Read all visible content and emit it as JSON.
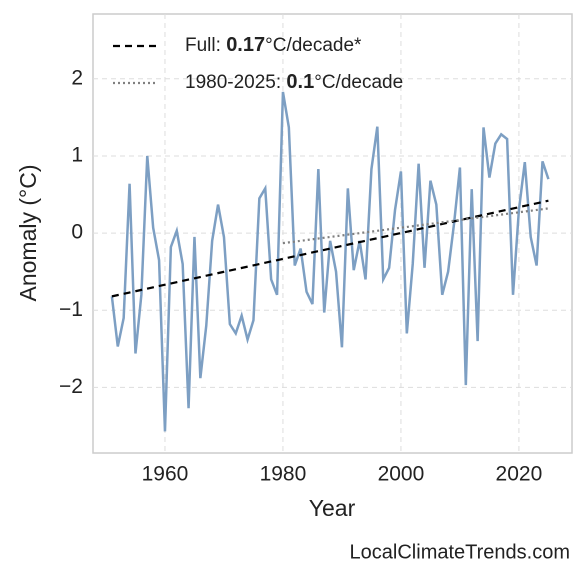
{
  "chart_data": {
    "type": "line",
    "xlabel": "Year",
    "ylabel": "Anomaly (°C)",
    "xlim": [
      1947.8,
      2029.0
    ],
    "ylim": [
      -2.85,
      2.84
    ],
    "xticks": [
      1960,
      1980,
      2000,
      2020
    ],
    "yticks": [
      {
        "value": -2,
        "label": "−2"
      },
      {
        "value": -1,
        "label": "−1"
      },
      0,
      1,
      2
    ],
    "grid": true,
    "legend": "upper left",
    "x": [
      1951,
      1952,
      1953,
      1954,
      1955,
      1956,
      1957,
      1958,
      1959,
      1960,
      1961,
      1962,
      1963,
      1964,
      1965,
      1966,
      1967,
      1968,
      1969,
      1970,
      1971,
      1972,
      1973,
      1974,
      1975,
      1976,
      1977,
      1978,
      1979,
      1980,
      1981,
      1982,
      1983,
      1984,
      1985,
      1986,
      1987,
      1988,
      1989,
      1990,
      1991,
      1992,
      1993,
      1994,
      1995,
      1996,
      1997,
      1998,
      1999,
      2000,
      2001,
      2002,
      2003,
      2004,
      2005,
      2006,
      2007,
      2008,
      2009,
      2010,
      2011,
      2012,
      2013,
      2014,
      2015,
      2016,
      2017,
      2018,
      2019,
      2020,
      2021,
      2022,
      2023,
      2024,
      2025
    ],
    "series": [
      {
        "color": "#7d9fc3",
        "values": [
          -0.82,
          -1.47,
          -1.1,
          0.64,
          -1.56,
          -0.8,
          1.0,
          0.07,
          -0.35,
          -2.57,
          -0.18,
          0.03,
          -0.4,
          -2.27,
          -0.05,
          -1.88,
          -1.2,
          -0.1,
          0.37,
          -0.05,
          -1.18,
          -1.3,
          -1.07,
          -1.38,
          -1.13,
          0.45,
          0.58,
          -0.6,
          -0.8,
          1.83,
          1.37,
          -0.42,
          -0.2,
          -0.76,
          -0.92,
          0.83,
          -1.03,
          -0.1,
          -0.5,
          -1.48,
          0.58,
          -0.48,
          -0.1,
          -0.6,
          0.83,
          1.38,
          -0.6,
          -0.45,
          0.3,
          0.8,
          -1.3,
          -0.4,
          0.9,
          -0.45,
          0.68,
          0.37,
          -0.8,
          -0.5,
          0.12,
          0.85,
          -1.97,
          0.57,
          -1.4,
          1.37,
          0.72,
          1.16,
          1.28,
          1.22,
          -0.8,
          0.3,
          0.92,
          -0.05,
          -0.42,
          0.93,
          0.7
        ]
      },
      {
        "name_prefix": "Full: ",
        "slope": 0.17,
        "name_suffix": "°C/decade*",
        "color": "#000000",
        "style": "dashed",
        "x": [
          1951,
          2025
        ],
        "values": [
          -0.82,
          0.42
        ]
      },
      {
        "name_prefix": "1980-2025: ",
        "slope": 0.1,
        "name_suffix": "°C/decade",
        "color": "#808080",
        "style": "dotted",
        "x": [
          1980,
          2025
        ],
        "values": [
          -0.13,
          0.32
        ]
      }
    ],
    "source": "LocalClimateTrends.com"
  }
}
